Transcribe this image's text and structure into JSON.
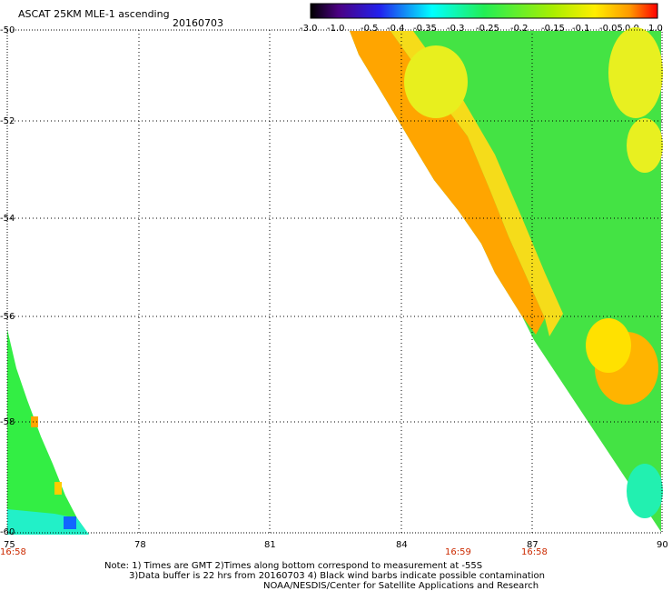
{
  "header": {
    "title": "ASCAT 25KM MLE-1 ascending",
    "date": "20160703"
  },
  "colorbar": {
    "labels": [
      "-3.0",
      "-1.0",
      "-0.5",
      "-0.4",
      "-0.35",
      "-0.3",
      "-0.25",
      "-0.2",
      "-0.15",
      "-0.1",
      "-0.05",
      "0.0",
      "1.0"
    ]
  },
  "map": {
    "lat_labels": [
      "-50",
      "-52",
      "-54",
      "-56",
      "-58",
      "-60"
    ],
    "lon_labels": [
      "75",
      "78",
      "81",
      "84",
      "87",
      "90"
    ],
    "time_labels": [
      "16:58",
      "16:59",
      "16:58"
    ],
    "colors": {
      "orange": "#ff8c00",
      "yellow": "#ffee00",
      "green": "#22ee22",
      "cyan": "#00ffdd",
      "blue": "#1166ff"
    }
  },
  "notes": {
    "line1": "Note: 1) Times are GMT 2)Times along bottom correspond to measurement at -55S",
    "line2": "3)Data buffer is 22 hrs from 20160703 4) Black wind barbs indicate possible contamination",
    "line3": "NOAA/NESDIS/Center for Satellite Applications and Research"
  }
}
